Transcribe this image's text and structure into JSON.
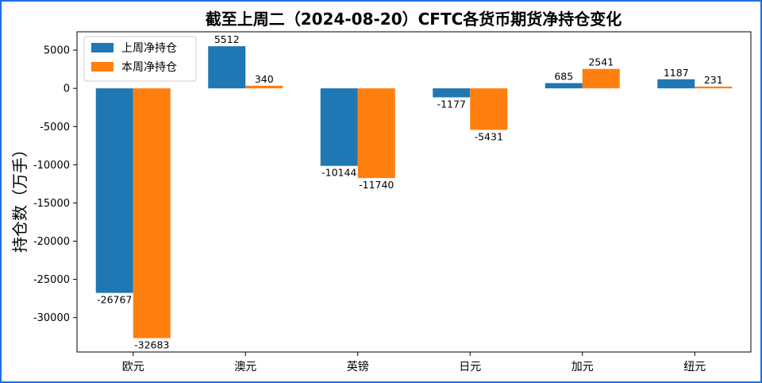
{
  "chart_data": {
    "type": "bar",
    "title": "截至上周二（2024-08-20）CFTC各货币期货净持仓变化",
    "xlabel": "",
    "ylabel": "持仓数（万手）",
    "categories": [
      "欧元",
      "澳元",
      "英镑",
      "日元",
      "加元",
      "纽元"
    ],
    "series": [
      {
        "name": "上周净持仓",
        "values": [
          -26767,
          5512,
          -10144,
          -1177,
          685,
          1187
        ],
        "color": "#1f77b4"
      },
      {
        "name": "本周净持仓",
        "values": [
          -32683,
          340,
          -11740,
          -5431,
          2541,
          231
        ],
        "color": "#ff7f0e"
      }
    ],
    "ylim": [
      -34500,
      7400
    ],
    "yticks": [
      5000,
      0,
      -5000,
      -10000,
      -15000,
      -20000,
      -25000,
      -30000
    ],
    "grid": false,
    "legend": "top-left"
  },
  "frame_color": "#1f6fe0"
}
